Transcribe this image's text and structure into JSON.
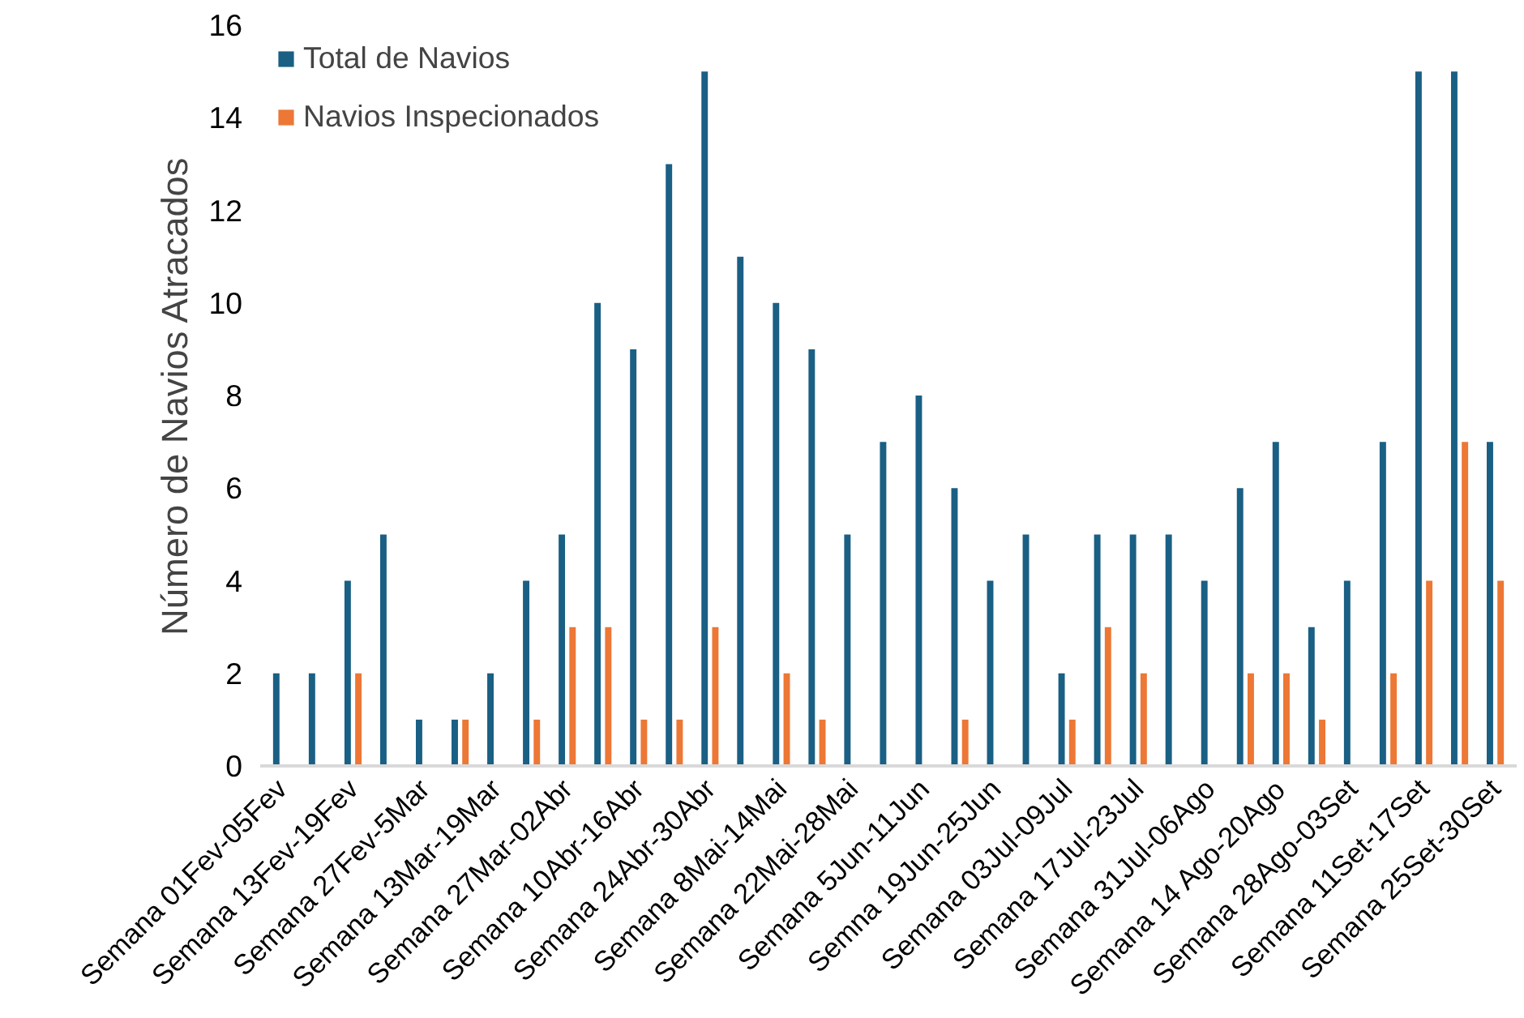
{
  "chart_data": {
    "type": "bar",
    "ylabel": "Número de Navios Atracados",
    "categories": [
      "Semana 01Fev-05Fev",
      null,
      "Semana 13Fev-19Fev",
      null,
      "Semana 27Fev-5Mar",
      null,
      "Semana 13Mar-19Mar",
      null,
      "Semana 27Mar-02Abr",
      null,
      "Semana 10Abr-16Abr",
      null,
      "Semana 24Abr-30Abr",
      null,
      "Semana 8Mai-14Mai",
      null,
      "Semana 22Mai-28Mai",
      null,
      "Semana 5Jun-11Jun",
      null,
      "Semna 19Jun-25Jun",
      null,
      "Semana 03Jul-09Jul",
      null,
      "Semana 17Jul-23Jul",
      null,
      "Semana 31Jul-06Ago",
      null,
      "Semana 14 Ago-20Ago",
      null,
      "Semana 28Ago-03Set",
      null,
      "Semana 11Set-17Set",
      null,
      "Semana 25Set-30Set"
    ],
    "series": [
      {
        "name": "Total de Navios",
        "color": "#1a5f84",
        "values": [
          2,
          2,
          4,
          5,
          1,
          1,
          2,
          4,
          5,
          10,
          9,
          13,
          15,
          11,
          10,
          9,
          5,
          7,
          8,
          6,
          4,
          5,
          2,
          5,
          5,
          5,
          4,
          6,
          7,
          3,
          4,
          7,
          15,
          15,
          7
        ]
      },
      {
        "name": "Navios Inspecionados",
        "color": "#ed7735",
        "values": [
          0,
          0,
          2,
          0,
          0,
          1,
          0,
          1,
          3,
          3,
          1,
          1,
          3,
          0,
          2,
          1,
          0,
          0,
          0,
          1,
          0,
          0,
          1,
          3,
          2,
          0,
          0,
          2,
          2,
          1,
          0,
          2,
          4,
          7,
          4
        ]
      }
    ],
    "ylim": [
      0,
      16
    ],
    "yticks": [
      0,
      2,
      4,
      6,
      8,
      10,
      12,
      14,
      16
    ],
    "grid": false,
    "legend": "top left"
  }
}
